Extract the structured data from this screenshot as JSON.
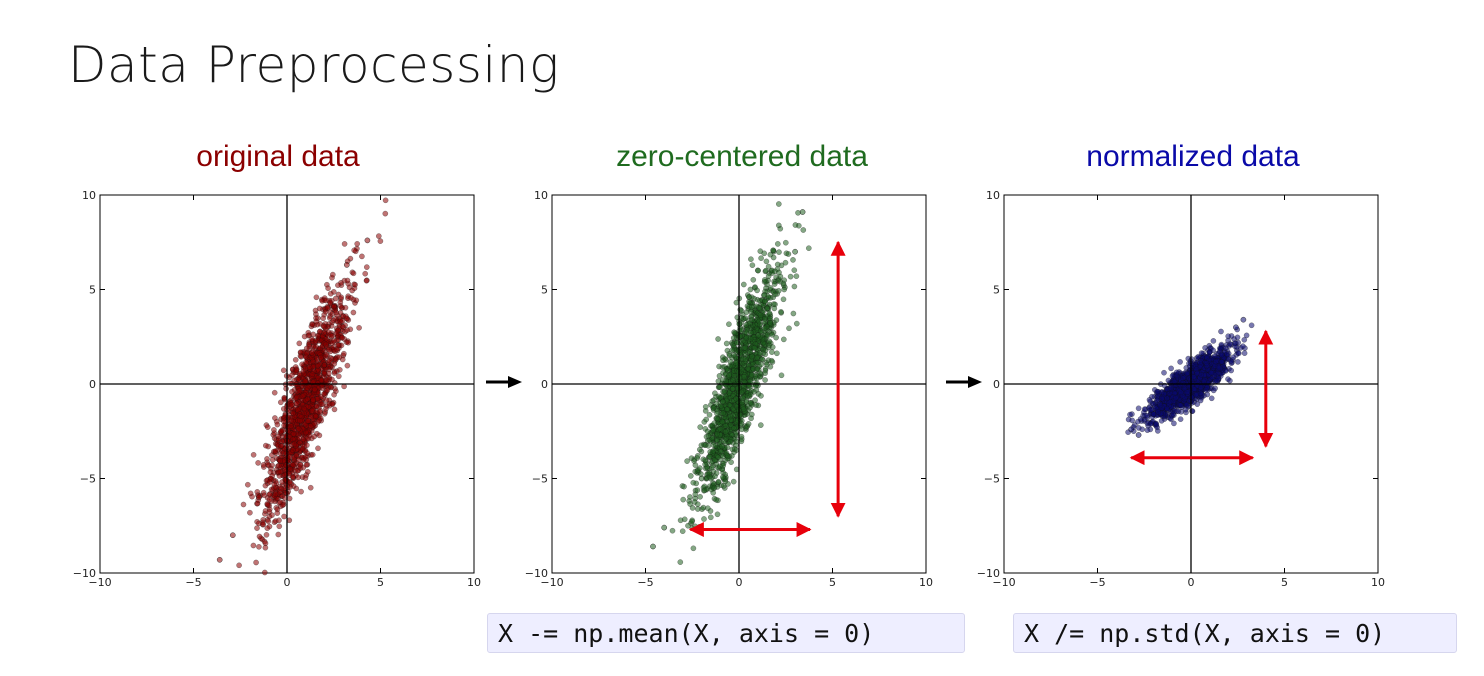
{
  "slide": {
    "title": "Data Preprocessing",
    "code_mean": "X -= np.mean(X, axis = 0)",
    "code_std": "X /= np.std(X, axis = 0)"
  },
  "colors": {
    "panel_original": "#8b0000",
    "panel_centered": "#1f6b1f",
    "panel_normalized": "#0a0aa8",
    "arrow_red": "#e8000b",
    "arrow_black": "#000000"
  },
  "chart_data": [
    {
      "type": "scatter",
      "title": "original data",
      "xlim": [
        -10,
        10
      ],
      "ylim": [
        -10,
        10
      ],
      "xticks": [
        -10,
        -5,
        0,
        5,
        10
      ],
      "yticks": [
        -10,
        -5,
        0,
        5,
        10
      ],
      "grid": false,
      "axes_through_origin": true,
      "color": "#8b0000",
      "distribution": {
        "center": [
          1.0,
          -1.0
        ],
        "major_std": 3.2,
        "minor_std": 0.55,
        "angle_deg": 72,
        "n": 1400
      },
      "points": [
        [
          -3.6,
          -9.3
        ],
        [
          4.3,
          7.6
        ],
        [
          -2.9,
          -8.0
        ],
        [
          3.2,
          6.3
        ],
        [
          -1.5,
          -6.0
        ],
        [
          2.5,
          4.1
        ],
        [
          0.0,
          -3.0
        ],
        [
          2.0,
          1.0
        ]
      ]
    },
    {
      "type": "scatter",
      "title": "zero-centered data",
      "xlim": [
        -10,
        10
      ],
      "ylim": [
        -10,
        10
      ],
      "xticks": [
        -10,
        -5,
        0,
        5,
        10
      ],
      "yticks": [
        -10,
        -5,
        0,
        5,
        10
      ],
      "grid": false,
      "axes_through_origin": true,
      "color": "#1f5e1f",
      "distribution": {
        "center": [
          0.0,
          0.0
        ],
        "major_std": 3.2,
        "minor_std": 0.55,
        "angle_deg": 72,
        "n": 1400
      },
      "points": [
        [
          -4.6,
          -8.6
        ],
        [
          3.4,
          9.1
        ],
        [
          -4.0,
          -7.6
        ],
        [
          3.0,
          7.0
        ],
        [
          -2.0,
          -5.0
        ],
        [
          1.5,
          4.0
        ]
      ],
      "spread_arrows": {
        "horizontal": {
          "x": [
            -2.6,
            3.8
          ],
          "y": -7.7
        },
        "vertical": {
          "x": 5.3,
          "y": [
            -7.0,
            7.5
          ]
        }
      }
    },
    {
      "type": "scatter",
      "title": "normalized data",
      "xlim": [
        -10,
        10
      ],
      "ylim": [
        -10,
        10
      ],
      "xticks": [
        -10,
        -5,
        0,
        5,
        10
      ],
      "yticks": [
        -10,
        -5,
        0,
        5,
        10
      ],
      "grid": false,
      "axes_through_origin": true,
      "color": "#0a0a6e",
      "distribution": {
        "center": [
          0.0,
          0.0
        ],
        "major_std": 1.35,
        "minor_std": 0.4,
        "angle_deg": 40,
        "n": 1400
      },
      "points": [
        [
          -2.8,
          -2.7
        ],
        [
          2.8,
          3.4
        ],
        [
          -3.2,
          -2.4
        ],
        [
          2.4,
          3.0
        ]
      ],
      "spread_arrows": {
        "horizontal": {
          "x": [
            -3.2,
            3.3
          ],
          "y": -3.9
        },
        "vertical": {
          "x": 4.0,
          "y": [
            -3.3,
            2.8
          ]
        }
      }
    }
  ]
}
